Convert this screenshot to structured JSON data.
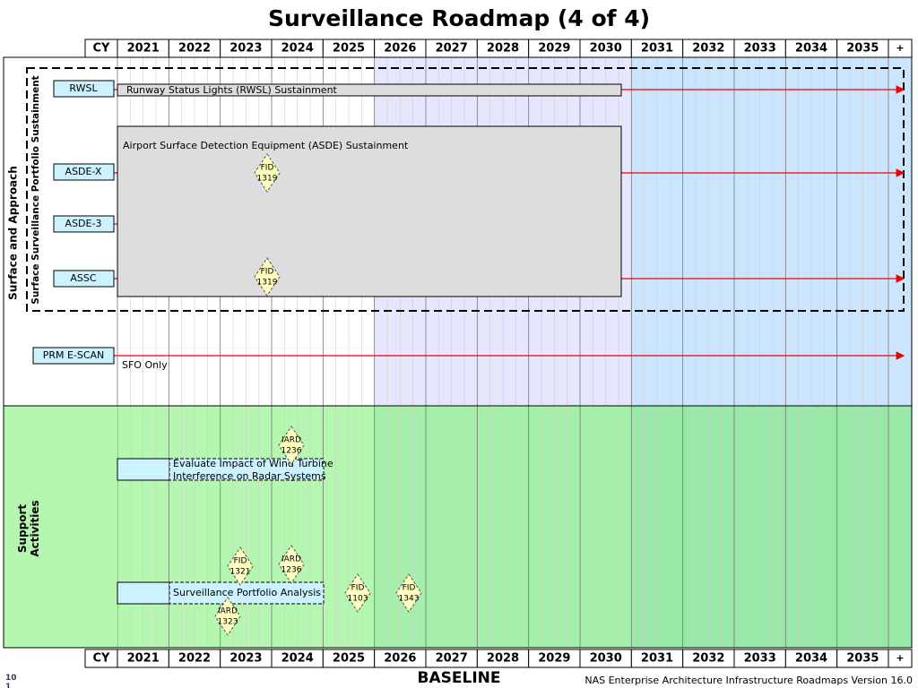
{
  "title": "Surveillance Roadmap (4 of 4)",
  "header": {
    "cy": "CY",
    "years": [
      "2021",
      "2022",
      "2023",
      "2024",
      "2025",
      "2026",
      "2027",
      "2028",
      "2029",
      "2030",
      "2031",
      "2032",
      "2033",
      "2034",
      "2035"
    ],
    "plus": "+"
  },
  "sections": [
    {
      "label": "Surface and Approach",
      "group": "Surface Surveillance Portfolio Sustainment"
    },
    {
      "label": [
        "Support",
        "Activities"
      ]
    }
  ],
  "programs": [
    "RWSL",
    "ASDE-X",
    "ASDE-3",
    "ASSC",
    "PRM E-SCAN"
  ],
  "bars": [
    "Runway Status Lights (RWSL) Sustainment",
    "Airport Surface Detection Equipment (ASDE) Sustainment",
    [
      "Evaluate Impact of Wind Turbine",
      "Interference on Radar Systems"
    ],
    "Surveillance Portfolio Analysis"
  ],
  "note": "SFO Only",
  "milestones": [
    [
      "FID",
      "1319"
    ],
    [
      "FID",
      "1319"
    ],
    [
      "IARD",
      "1236"
    ],
    [
      "FID",
      "1321"
    ],
    [
      "IARD",
      "1236"
    ],
    [
      "FID",
      "1103"
    ],
    [
      "FID",
      "1343"
    ],
    [
      "IARD",
      "1323"
    ]
  ],
  "footer": {
    "baseline": "BASELINE",
    "version": "NAS Enterprise Architecture Infrastructure Roadmaps Version 16.0",
    "page": [
      "10",
      "1"
    ]
  }
}
